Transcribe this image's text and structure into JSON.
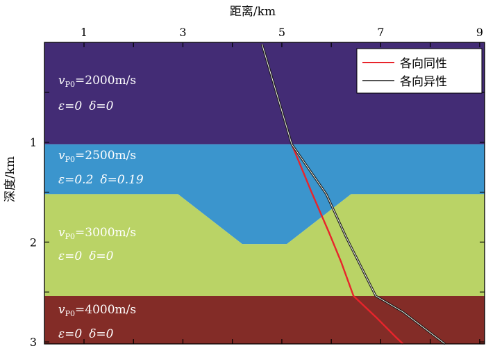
{
  "chart_data": {
    "type": "line",
    "xlabel": "距离/km",
    "ylabel": "深度/km",
    "xlim": [
      0.2,
      9.1
    ],
    "ylim": [
      0,
      3.02
    ],
    "x_ticks": [
      1,
      2,
      3,
      4,
      5,
      6,
      7,
      8,
      9
    ],
    "x_tick_labels": [
      "1",
      "",
      "3",
      "",
      "5",
      "",
      "7",
      "",
      "9"
    ],
    "y_ticks": [
      0.5,
      1,
      1.5,
      2,
      2.5,
      3
    ],
    "y_tick_labels": [
      "",
      "1",
      "",
      "2",
      "",
      "3"
    ],
    "x_axis_position": "top",
    "legend_position": "top-right",
    "layers": [
      {
        "color": "#432c75",
        "polygon": [
          [
            0.2,
            0
          ],
          [
            9.1,
            0
          ],
          [
            9.1,
            1.02
          ],
          [
            0.2,
            1.02
          ]
        ],
        "vp_symbol": "v",
        "vp_subscript": "P0",
        "vp_value": "=2000m/s",
        "epsilon": "ε=0",
        "delta": "δ=0"
      },
      {
        "color": "#3b95cd",
        "polygon": [
          [
            0.2,
            1.02
          ],
          [
            9.1,
            1.02
          ],
          [
            9.1,
            1.52
          ],
          [
            6.4,
            1.52
          ],
          [
            5.1,
            2.02
          ],
          [
            4.2,
            2.02
          ],
          [
            2.9,
            1.52
          ],
          [
            0.2,
            1.52
          ]
        ],
        "vp_symbol": "v",
        "vp_subscript": "P0",
        "vp_value": "=2500m/s",
        "epsilon": "ε=0.2",
        "delta": "δ=0.19"
      },
      {
        "color": "#bad366",
        "polygon": [
          [
            0.2,
            1.52
          ],
          [
            2.9,
            1.52
          ],
          [
            4.2,
            2.02
          ],
          [
            5.1,
            2.02
          ],
          [
            6.4,
            1.52
          ],
          [
            9.1,
            1.52
          ],
          [
            9.1,
            2.54
          ],
          [
            0.2,
            2.54
          ]
        ],
        "vp_symbol": "v",
        "vp_subscript": "P0",
        "vp_value": "=3000m/s",
        "epsilon": "ε=0",
        "delta": "δ=0"
      },
      {
        "color": "#832c27",
        "polygon": [
          [
            0.2,
            2.54
          ],
          [
            9.1,
            2.54
          ],
          [
            9.1,
            3.02
          ],
          [
            0.2,
            3.02
          ]
        ],
        "vp_symbol": "v",
        "vp_subscript": "P0",
        "vp_value": "=4000m/s",
        "epsilon": "ε=0",
        "delta": "δ=0"
      }
    ],
    "series": [
      {
        "name": "各向同性",
        "color": "#e8242b",
        "x": [
          4.6,
          4.9,
          5.2,
          5.6,
          5.95,
          6.2,
          6.45,
          6.9,
          7.3,
          7.45
        ],
        "y": [
          0.02,
          0.52,
          1.02,
          1.5,
          1.9,
          2.2,
          2.54,
          2.75,
          2.95,
          3.02
        ]
      },
      {
        "name": "各向异性",
        "color": "#1a1a1a",
        "x": [
          4.6,
          4.9,
          5.2,
          5.9,
          6.3,
          6.9,
          7.45,
          7.9,
          8.3
        ],
        "y": [
          0.02,
          0.52,
          1.02,
          1.52,
          1.95,
          2.54,
          2.7,
          2.87,
          3.02
        ]
      }
    ]
  }
}
